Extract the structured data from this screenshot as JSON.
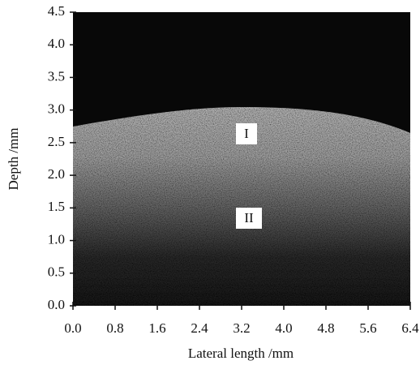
{
  "chart_data": {
    "type": "image",
    "xlabel": "Lateral length /mm",
    "ylabel": "Depth /mm",
    "xlim": [
      0,
      6.4
    ],
    "ylim": [
      0,
      4.5
    ],
    "xticks": [
      {
        "value": 0,
        "label": "0.0"
      },
      0.8,
      1.6,
      2.4,
      3.2,
      {
        "value": 4,
        "label": "4.0"
      },
      4.8,
      5.6,
      6.4
    ],
    "yticks": [
      {
        "value": 0,
        "label": "0.0"
      },
      0.5,
      {
        "value": 1,
        "label": "1.0"
      },
      1.5,
      {
        "value": 2,
        "label": "2.0"
      },
      2.5,
      {
        "value": 3,
        "label": "3.0"
      },
      3.5,
      {
        "value": 4,
        "label": "4.0"
      },
      4.5
    ],
    "annotations": [
      "I",
      "II"
    ]
  }
}
